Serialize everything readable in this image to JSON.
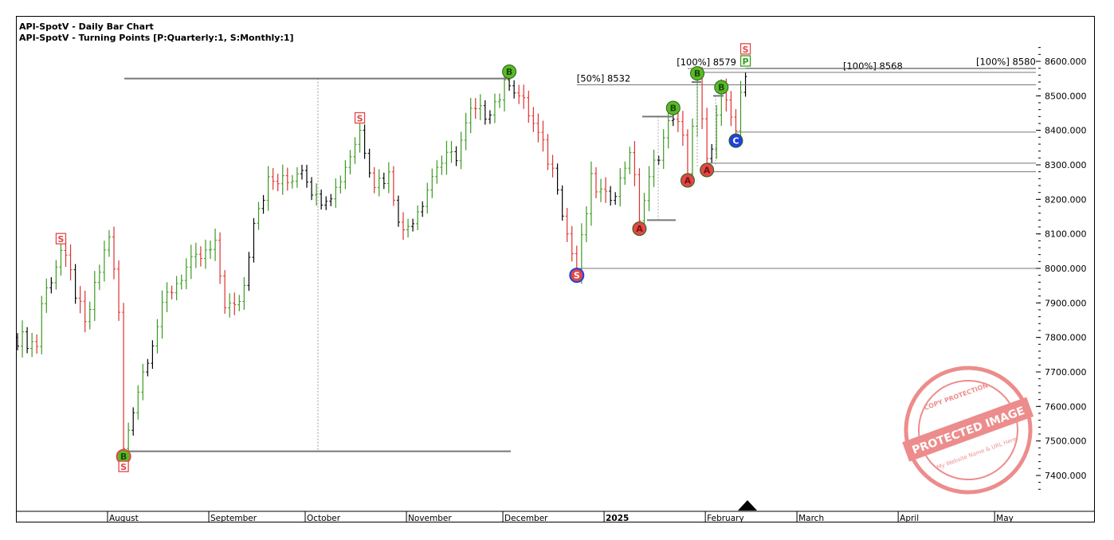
{
  "header": {
    "title": "API-SpotV - Daily Bar Chart",
    "subtitle": "API-SpotV - Turning Points [P:Quarterly:1, S:Monthly:1]"
  },
  "chart_data": {
    "type": "ohlc-bar",
    "title": "API-SpotV - Daily Bar Chart",
    "ylim": [
      7340,
      8660
    ],
    "y_ticks": [
      "8600.000",
      "8500.000",
      "8400.000",
      "8300.000",
      "8200.000",
      "8100.000",
      "8000.000",
      "7900.000",
      "7800.000",
      "7700.000",
      "7600.000",
      "7500.000",
      "7400.000"
    ],
    "y_tick_values": [
      8600,
      8500,
      8400,
      8300,
      8200,
      8100,
      8000,
      7900,
      7800,
      7700,
      7600,
      7500,
      7400
    ],
    "x_months": [
      {
        "label": "August",
        "day": 19
      },
      {
        "label": "September",
        "day": 40
      },
      {
        "label": "October",
        "day": 60
      },
      {
        "label": "November",
        "day": 81
      },
      {
        "label": "December",
        "day": 101
      },
      {
        "label": "2025",
        "day": 122,
        "bold": true
      },
      {
        "label": "February",
        "day": 143
      },
      {
        "label": "March",
        "day": 162
      },
      {
        "label": "April",
        "day": 183
      },
      {
        "label": "May",
        "day": 203
      }
    ],
    "price_path": [
      [
        0,
        7800
      ],
      [
        4,
        7780
      ],
      [
        5,
        7900
      ],
      [
        9,
        8050
      ],
      [
        11,
        7980
      ],
      [
        14,
        7830
      ],
      [
        19,
        8100
      ],
      [
        21,
        7870
      ],
      [
        22,
        7470
      ],
      [
        24,
        7600
      ],
      [
        27,
        7750
      ],
      [
        31,
        7920
      ],
      [
        35,
        8000
      ],
      [
        38,
        8030
      ],
      [
        41,
        8060
      ],
      [
        43,
        7900
      ],
      [
        45,
        7880
      ],
      [
        47,
        7950
      ],
      [
        49,
        8150
      ],
      [
        52,
        8250
      ],
      [
        56,
        8250
      ],
      [
        59,
        8300
      ],
      [
        62,
        8200
      ],
      [
        66,
        8230
      ],
      [
        71,
        8400
      ],
      [
        74,
        8250
      ],
      [
        77,
        8270
      ],
      [
        80,
        8100
      ],
      [
        84,
        8200
      ],
      [
        87,
        8300
      ],
      [
        91,
        8330
      ],
      [
        94,
        8450
      ],
      [
        97,
        8450
      ],
      [
        100,
        8500
      ],
      [
        102,
        8550
      ],
      [
        106,
        8450
      ],
      [
        109,
        8350
      ],
      [
        112,
        8250
      ],
      [
        114,
        8100
      ],
      [
        116,
        7990
      ],
      [
        119,
        8250
      ],
      [
        122,
        8200
      ],
      [
        125,
        8250
      ],
      [
        127,
        8350
      ],
      [
        129,
        8150
      ],
      [
        132,
        8300
      ],
      [
        136,
        8450
      ],
      [
        138,
        8370
      ],
      [
        139,
        8290
      ],
      [
        141,
        8540
      ],
      [
        143,
        8300
      ],
      [
        146,
        8500
      ],
      [
        149,
        8400
      ],
      [
        151,
        8580
      ]
    ],
    "levels": [
      {
        "value": 8550,
        "from": 22,
        "to": 102,
        "label": ""
      },
      {
        "value": 7470,
        "from": 22,
        "to": 102,
        "label": ""
      },
      {
        "value": 8532,
        "from": 116,
        "to": 210,
        "label": "[50%] 8532"
      },
      {
        "value": 8579,
        "from": 139,
        "to": 210,
        "label": "[100%] 8579"
      },
      {
        "value": 8568,
        "from": 141,
        "to": 210,
        "label": "[100%] 8568"
      },
      {
        "value": 8580,
        "from": 151,
        "to": 210,
        "label": "[100%] 8580"
      },
      {
        "value": 8395,
        "from": 149,
        "to": 210,
        "label": ""
      },
      {
        "value": 8000,
        "from": 116,
        "to": 210,
        "label": ""
      },
      {
        "value": 8305,
        "from": 143,
        "to": 210,
        "label": ""
      },
      {
        "value": 8280,
        "from": 143,
        "to": 210,
        "label": ""
      }
    ],
    "markers": [
      {
        "type": "circle",
        "letter": "B",
        "color": "#5cb82a",
        "day": 102,
        "value": 8570
      },
      {
        "type": "circle",
        "letter": "B",
        "color": "#5cb82a",
        "day": 136,
        "value": 8465
      },
      {
        "type": "circle",
        "letter": "B",
        "color": "#5cb82a",
        "day": 141,
        "value": 8565
      },
      {
        "type": "circle",
        "letter": "B",
        "color": "#5cb82a",
        "day": 146,
        "value": 8525
      },
      {
        "type": "circle",
        "letter": "A",
        "color": "#e04848",
        "day": 129,
        "value": 8115
      },
      {
        "type": "circle",
        "letter": "A",
        "color": "#e04848",
        "day": 139,
        "value": 8255
      },
      {
        "type": "circle",
        "letter": "A",
        "color": "#e04848",
        "day": 143,
        "value": 8285
      },
      {
        "type": "circle",
        "letter": "C",
        "color": "#2040e0",
        "day": 149,
        "value": 8370
      },
      {
        "type": "circle",
        "letter": "S",
        "color": "#e04848",
        "ring": "#2040e0",
        "day": 116,
        "value": 7980
      },
      {
        "type": "circle",
        "letter": "B",
        "color": "#5cb82a",
        "ring": "#e04848",
        "day": 22,
        "value": 7455
      },
      {
        "type": "square",
        "letter": "S",
        "color": "#e04848",
        "day": 9,
        "value": 8085
      },
      {
        "type": "square",
        "letter": "S",
        "color": "#e04848",
        "day": 71,
        "value": 8435
      },
      {
        "type": "square",
        "letter": "S",
        "color": "#e04848",
        "day": 151,
        "value": 8635
      },
      {
        "type": "square",
        "letter": "P",
        "color": "#3a9a20",
        "day": 151,
        "value": 8600
      },
      {
        "type": "square",
        "letter": "S",
        "color": "#e04848",
        "day": 22,
        "value": 7425
      }
    ]
  },
  "watermark": {
    "text": "PROTECTED IMAGE",
    "subtext": "My Website Name & URL Here",
    "ring_text": "COPY PROTECTION"
  }
}
